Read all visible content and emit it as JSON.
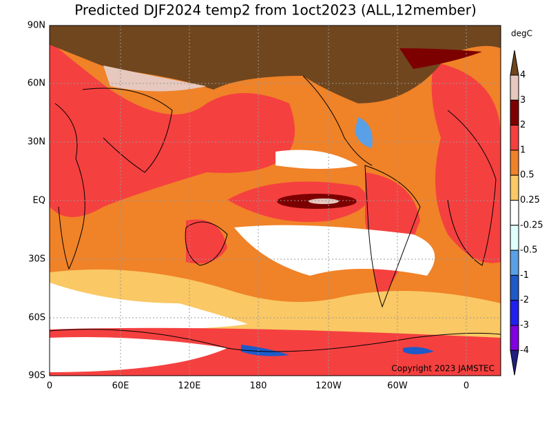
{
  "title": "Predicted DJF2024 temp2 from 1oct2023 (ALL,12member)",
  "lon_labels": [
    "0",
    "60E",
    "120E",
    "180",
    "120W",
    "60W",
    "0"
  ],
  "lat_labels": [
    "90N",
    "60N",
    "30N",
    "EQ",
    "30S",
    "60S",
    "90S"
  ],
  "copyright": "Copyright 2023 JAMSTEC",
  "colorbar": {
    "unit": "degC",
    "labels": [
      "4",
      "3",
      "2",
      "1",
      "0.5",
      "0.25",
      "-0.25",
      "-0.5",
      "-1",
      "-2",
      "-3",
      "-4"
    ],
    "colors": [
      "#70461e",
      "#e6c8be",
      "#7d0000",
      "#f54040",
      "#f08228",
      "#fac864",
      "#ffffff",
      "#e0ffff",
      "#5aa0e6",
      "#1e5ac8",
      "#2020f0",
      "#8000e0",
      "#202080"
    ]
  }
}
